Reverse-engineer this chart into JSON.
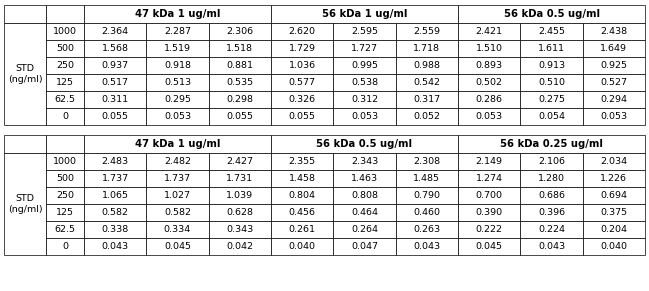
{
  "table1": {
    "group_headers": [
      {
        "label": "47 kDa 1 ug/ml"
      },
      {
        "label": "56 kDa 1 ug/ml"
      },
      {
        "label": "56 kDa 0.5 ug/ml"
      }
    ],
    "std_values": [
      "1000",
      "500",
      "250",
      "125",
      "62.5",
      "0"
    ],
    "data": [
      [
        2.364,
        2.287,
        2.306,
        2.62,
        2.595,
        2.559,
        2.421,
        2.455,
        2.438
      ],
      [
        1.568,
        1.519,
        1.518,
        1.729,
        1.727,
        1.718,
        1.51,
        1.611,
        1.649
      ],
      [
        0.937,
        0.918,
        0.881,
        1.036,
        0.995,
        0.988,
        0.893,
        0.913,
        0.925
      ],
      [
        0.517,
        0.513,
        0.535,
        0.577,
        0.538,
        0.542,
        0.502,
        0.51,
        0.527
      ],
      [
        0.311,
        0.295,
        0.298,
        0.326,
        0.312,
        0.317,
        0.286,
        0.275,
        0.294
      ],
      [
        0.055,
        0.053,
        0.055,
        0.055,
        0.053,
        0.052,
        0.053,
        0.054,
        0.053
      ]
    ]
  },
  "table2": {
    "group_headers": [
      {
        "label": "47 kDa 1 ug/ml"
      },
      {
        "label": "56 kDa 0.5 ug/ml"
      },
      {
        "label": "56 kDa 0.25 ug/ml"
      }
    ],
    "std_values": [
      "1000",
      "500",
      "250",
      "125",
      "62.5",
      "0"
    ],
    "data": [
      [
        2.483,
        2.482,
        2.427,
        2.355,
        2.343,
        2.308,
        2.149,
        2.106,
        2.034
      ],
      [
        1.737,
        1.737,
        1.731,
        1.458,
        1.463,
        1.485,
        1.274,
        1.28,
        1.226
      ],
      [
        1.065,
        1.027,
        1.039,
        0.804,
        0.808,
        0.79,
        0.7,
        0.686,
        0.694
      ],
      [
        0.582,
        0.582,
        0.628,
        0.456,
        0.464,
        0.46,
        0.39,
        0.396,
        0.375
      ],
      [
        0.338,
        0.334,
        0.343,
        0.261,
        0.264,
        0.263,
        0.222,
        0.224,
        0.204
      ],
      [
        0.043,
        0.045,
        0.042,
        0.04,
        0.047,
        0.043,
        0.045,
        0.043,
        0.04
      ]
    ]
  },
  "font_size": 6.8,
  "header_font_size": 7.2,
  "lw": 0.5
}
